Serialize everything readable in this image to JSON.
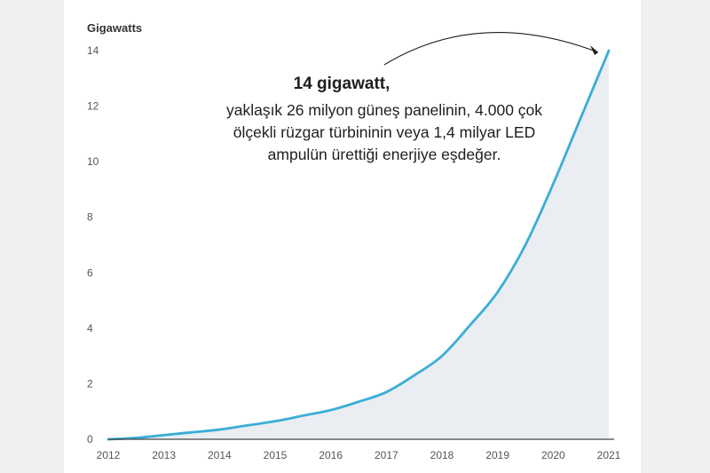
{
  "colors": {
    "line": "#3aaed6",
    "area": "#eaedf1",
    "axis": "#444444",
    "background": "#ffffff"
  },
  "annotation": {
    "headline": "14 gigawatt,",
    "body": "yaklaşık 26 milyon güneş panelinin, 4.000 çok ölçekli rüzgar türbininin veya 1,4 milyar LED ampulün ürettiği enerjiye eşdeğer."
  },
  "chart_data": {
    "type": "area",
    "title": "",
    "ylabel": "Gigawatts",
    "xlabel": "",
    "x_ticks": [
      "2012",
      "2013",
      "2014",
      "2015",
      "2016",
      "2017",
      "2018",
      "2019",
      "2020",
      "2021"
    ],
    "y_ticks": [
      "0",
      "2",
      "4",
      "6",
      "8",
      "10",
      "12",
      "14"
    ],
    "xlim": [
      2012,
      2021
    ],
    "ylim": [
      0,
      14
    ],
    "grid": false,
    "series": [
      {
        "x": [
          2012,
          2012.5,
          2013,
          2013.5,
          2014,
          2014.5,
          2015,
          2015.5,
          2016,
          2016.5,
          2017,
          2017.5,
          2018,
          2018.5,
          2019,
          2019.5,
          2020,
          2020.5,
          2021
        ],
        "y": [
          0,
          0.05,
          0.15,
          0.25,
          0.35,
          0.5,
          0.65,
          0.85,
          1.05,
          1.35,
          1.7,
          2.3,
          3.0,
          4.1,
          5.3,
          7.0,
          9.2,
          11.6,
          14.0
        ]
      }
    ]
  }
}
